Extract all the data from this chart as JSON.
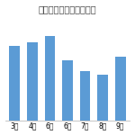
{
  "title": "気象庁の月別予報的中率",
  "categories": [
    "3月",
    "4月",
    "6月",
    "6月",
    "7月",
    "8月",
    "9月"
  ],
  "values": [
    72,
    76,
    82,
    58,
    48,
    44,
    62
  ],
  "bar_color": "#5b9bd5",
  "ylim": [
    0,
    100
  ],
  "background_color": "#ffffff",
  "title_fontsize": 7.0,
  "tick_fontsize": 5.5
}
